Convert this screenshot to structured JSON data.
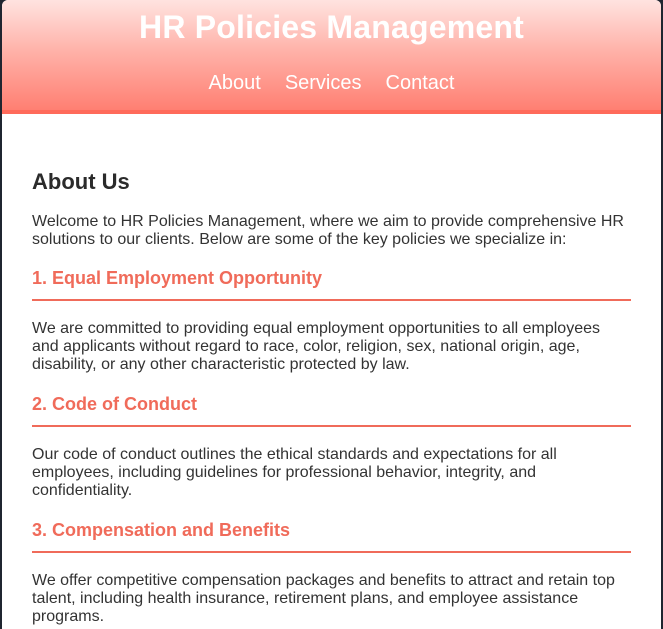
{
  "header": {
    "title": "HR Policies Management",
    "nav": {
      "about": "About",
      "services": "Services",
      "contact": "Contact"
    }
  },
  "main": {
    "title": "About Us",
    "intro": "Welcome to HR Policies Management, where we aim to provide comprehensive HR solutions to our clients. Below are some of the key policies we specialize in:",
    "policies": [
      {
        "heading": "1. Equal Employment Opportunity",
        "text": "We are committed to providing equal employment opportunities to all employees and applicants without regard to race, color, religion, sex, national origin, age, disability, or any other characteristic protected by law."
      },
      {
        "heading": "2. Code of Conduct",
        "text": "Our code of conduct outlines the ethical standards and expectations for all employees, including guidelines for professional behavior, integrity, and confidentiality."
      },
      {
        "heading": "3. Compensation and Benefits",
        "text": "We offer competitive compensation packages and benefits to attract and retain top talent, including health insurance, retirement plans, and employee assistance programs."
      }
    ]
  },
  "colors": {
    "accent": "#f06b5a",
    "header_gradient_top": "#ffe3e0",
    "header_gradient_bottom": "#ff7f72"
  }
}
